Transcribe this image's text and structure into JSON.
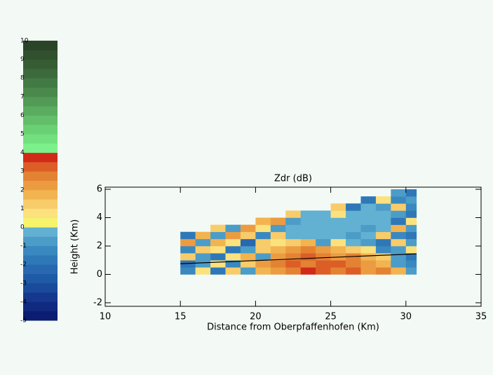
{
  "chart_data": {
    "type": "heatmap",
    "title": "Zdr (dB)",
    "x_label": "Distance from Oberpfaffenhofen (Km)",
    "y_label": "Height (Km)",
    "xlim": [
      10,
      35
    ],
    "xticks": [
      10,
      15,
      20,
      25,
      30,
      35
    ],
    "ylim": [
      -2.25,
      6.15
    ],
    "yticks": [
      -2,
      0,
      2,
      4,
      6
    ],
    "x_edges": [
      15,
      16,
      17,
      18,
      19,
      20,
      21,
      22,
      23,
      24,
      25,
      26,
      27,
      28,
      29,
      30,
      30.7
    ],
    "y_edges": [
      0,
      0.5,
      1,
      1.5,
      2,
      2.5,
      3,
      3.5,
      4,
      4.5,
      5,
      5.5,
      6
    ],
    "z": [
      [
        -1.5,
        0.5,
        -2,
        1,
        -1,
        1.5,
        2,
        2.5,
        3.5,
        3,
        2.5,
        3,
        2,
        2.5,
        1.5,
        -1
      ],
      [
        -2,
        -1,
        0.5,
        -1.5,
        1,
        2,
        2.5,
        3,
        2.5,
        3,
        3,
        2.5,
        2,
        1.5,
        -1,
        -1.5
      ],
      [
        1,
        -1,
        -2,
        0.5,
        1.5,
        -1,
        2,
        2.5,
        3,
        2.5,
        2,
        2.5,
        1.5,
        1,
        -1,
        -2
      ],
      [
        -1.5,
        1,
        0.5,
        -2,
        -1,
        1,
        1.5,
        2,
        2.5,
        2,
        1.5,
        1,
        0.5,
        -1.5,
        -1,
        0.5
      ],
      [
        2,
        -1,
        1.5,
        0.5,
        -2.5,
        1,
        0.5,
        1,
        1.5,
        -1,
        0.5,
        -0.5,
        -1,
        -2,
        1,
        -1
      ],
      [
        -2,
        1.5,
        -1,
        2,
        1,
        -1.5,
        1,
        -0.5,
        -0.5,
        -0.5,
        -0.5,
        -1,
        -0.5,
        1,
        -1.5,
        -2
      ],
      [
        null,
        null,
        1,
        -1,
        2,
        0.5,
        -1,
        -0.5,
        -0.5,
        -0.5,
        -0.5,
        -0.5,
        -1,
        -0.5,
        1.5,
        -1
      ],
      [
        null,
        null,
        null,
        null,
        null,
        1.5,
        2,
        -1,
        -0.5,
        -0.5,
        -0.5,
        -0.5,
        -0.5,
        -0.5,
        -2,
        0.5
      ],
      [
        null,
        null,
        null,
        null,
        null,
        null,
        null,
        1,
        -0.5,
        -0.5,
        0.5,
        -0.5,
        -0.5,
        -0.5,
        -1,
        -2
      ],
      [
        null,
        null,
        null,
        null,
        null,
        null,
        null,
        null,
        null,
        null,
        1,
        -2,
        -0.5,
        -1,
        1,
        -1.5
      ],
      [
        null,
        null,
        null,
        null,
        null,
        null,
        null,
        null,
        null,
        null,
        null,
        null,
        -2,
        0.5,
        -1.5,
        -1
      ],
      [
        null,
        null,
        null,
        null,
        null,
        null,
        null,
        null,
        null,
        null,
        null,
        null,
        null,
        null,
        -1,
        -2
      ]
    ],
    "beam": {
      "x": [
        15,
        30.7
      ],
      "y": [
        0.75,
        1.45
      ],
      "color": "#000000"
    },
    "colorbar": {
      "lim": [
        -5,
        10
      ],
      "ticks": [
        -5,
        -4,
        -3,
        -2,
        -1,
        0,
        1,
        2,
        3,
        4,
        5,
        6,
        7,
        8,
        9,
        10
      ],
      "colors": [
        "#0c1c70",
        "#102a80",
        "#15388e",
        "#1a4a9a",
        "#1f5aa6",
        "#2768b0",
        "#2f78b8",
        "#3a88c0",
        "#4c9cc8",
        "#62b0d2",
        "#f6f46a",
        "#fbe27e",
        "#f8cc6a",
        "#f2b450",
        "#ec9c40",
        "#e48234",
        "#dc5e26",
        "#d22a18",
        "#7cf08a",
        "#72e07e",
        "#6ad074",
        "#62be6a",
        "#5aac60",
        "#529a56",
        "#4a884c",
        "#427a44",
        "#3c6a3c",
        "#365c34",
        "#30502e",
        "#2a4428"
      ]
    }
  }
}
